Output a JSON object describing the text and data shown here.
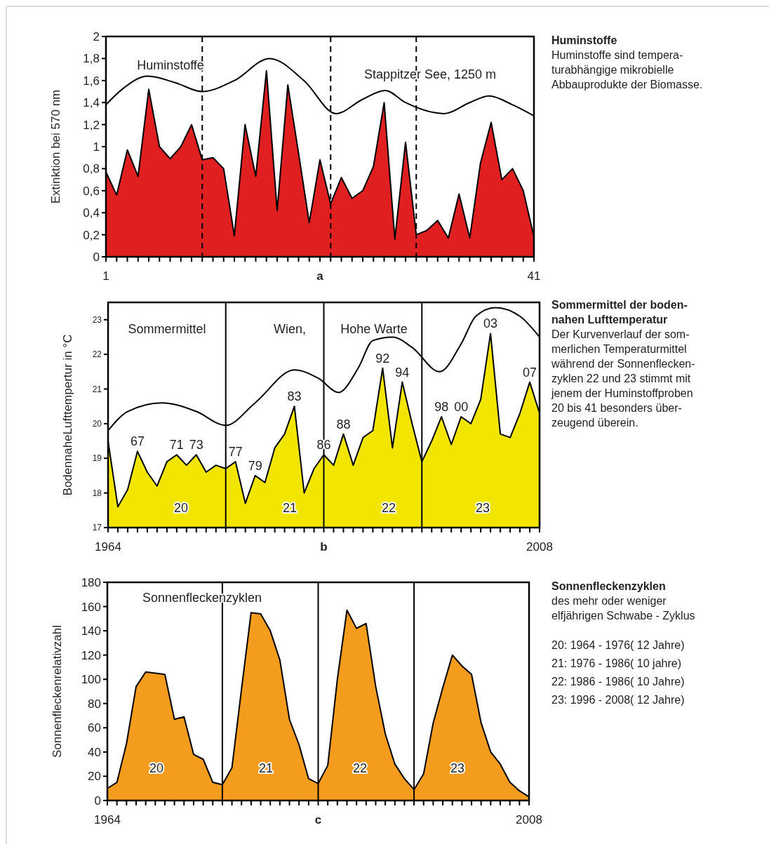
{
  "chart_data": [
    {
      "type": "area",
      "xlabel": "a",
      "ylabel": "Extinktion bei 570 nm",
      "x": [
        1,
        2,
        3,
        4,
        5,
        6,
        7,
        8,
        9,
        10,
        11,
        12,
        13,
        14,
        15,
        16,
        17,
        18,
        19,
        20,
        21,
        22,
        23,
        24,
        25,
        26,
        27,
        28,
        29,
        30,
        31,
        32,
        33,
        34,
        35,
        36,
        37,
        38,
        39,
        40,
        41
      ],
      "xlim": [
        1,
        41
      ],
      "ylim": [
        0,
        2
      ],
      "xticks": [
        1,
        {
          "value": 2,
          "label": null
        },
        {
          "value": 3,
          "label": null
        },
        {
          "value": 4,
          "label": null
        },
        {
          "value": 5,
          "label": null
        },
        {
          "value": 6,
          "label": null
        },
        {
          "value": 7,
          "label": null
        },
        {
          "value": 8,
          "label": null
        },
        {
          "value": 9,
          "label": null
        },
        {
          "value": 10,
          "label": null
        },
        {
          "value": 11,
          "label": null
        },
        {
          "value": 12,
          "label": null
        },
        {
          "value": 13,
          "label": null
        },
        {
          "value": 14,
          "label": null
        },
        {
          "value": 15,
          "label": null
        },
        {
          "value": 16,
          "label": null
        },
        {
          "value": 17,
          "label": null
        },
        {
          "value": 18,
          "label": null
        },
        {
          "value": 19,
          "label": null
        },
        {
          "value": 20,
          "label": null
        },
        {
          "value": 21,
          "label": null
        },
        {
          "value": 22,
          "label": null
        },
        {
          "value": 23,
          "label": null
        },
        {
          "value": 24,
          "label": null
        },
        {
          "value": 25,
          "label": null
        },
        {
          "value": 26,
          "label": null
        },
        {
          "value": 27,
          "label": null
        },
        {
          "value": 28,
          "label": null
        },
        {
          "value": 29,
          "label": null
        },
        {
          "value": 30,
          "label": null
        },
        {
          "value": 31,
          "label": null
        },
        {
          "value": 32,
          "label": null
        },
        {
          "value": 33,
          "label": null
        },
        {
          "value": 34,
          "label": null
        },
        {
          "value": 35,
          "label": null
        },
        {
          "value": 36,
          "label": null
        },
        {
          "value": 37,
          "label": null
        },
        {
          "value": 38,
          "label": null
        },
        {
          "value": 39,
          "label": null
        },
        {
          "value": 40,
          "label": null
        },
        41
      ],
      "yticks": [
        0,
        {
          "value": 0.2,
          "label": "0,2"
        },
        {
          "value": 0.4,
          "label": "0,4"
        },
        {
          "value": 0.6,
          "label": "0,6"
        },
        {
          "value": 0.8,
          "label": "0,8"
        },
        1,
        {
          "value": 1.2,
          "label": "1,2"
        },
        {
          "value": 1.4,
          "label": "1,4"
        },
        {
          "value": 1.6,
          "label": "1,6"
        },
        {
          "value": 1.8,
          "label": "1,8"
        },
        2
      ],
      "series": [
        {
          "type": "area",
          "color": "#e02020",
          "values": [
            0.77,
            0.56,
            0.97,
            0.73,
            1.52,
            1.0,
            0.89,
            1.0,
            1.2,
            0.88,
            0.9,
            0.8,
            0.19,
            1.2,
            0.73,
            1.69,
            0.42,
            1.56,
            0.94,
            0.31,
            0.88,
            0.48,
            0.72,
            0.53,
            0.6,
            0.82,
            1.4,
            0.16,
            1.04,
            0.2,
            0.24,
            0.33,
            0.17,
            0.57,
            0.17,
            0.85,
            1.22,
            0.7,
            0.8,
            0.6,
            0.18
          ]
        },
        {
          "type": "line",
          "color": "#000000",
          "x": [
            1,
            2.5,
            4.9,
            7.5,
            10,
            13,
            16.3,
            19.5,
            22.5,
            25,
            27.1,
            29,
            32.6,
            35,
            36.8,
            39,
            41
          ],
          "values": [
            1.38,
            1.52,
            1.64,
            1.58,
            1.5,
            1.6,
            1.8,
            1.6,
            1.3,
            1.43,
            1.51,
            1.4,
            1.3,
            1.4,
            1.46,
            1.38,
            1.28
          ]
        }
      ],
      "ref_lines": [
        {
          "axis": "x",
          "value": 10,
          "color": "#000000",
          "line_style": "dashed"
        },
        {
          "axis": "x",
          "value": 22,
          "color": "#000000",
          "line_style": "dashed"
        },
        {
          "axis": "x",
          "value": 30,
          "color": "#000000",
          "line_style": "dashed"
        }
      ],
      "annotations": [
        "Huminstoffe",
        "Stappitzer See, 1250 m"
      ]
    },
    {
      "type": "other",
      "title": "Huminstoffe",
      "subtitle": "Huminstoffe sind tempera-\nturabhängige mikrobielle\nAbbauprodukte der Biomasse."
    },
    {
      "type": "area",
      "xlabel": "b",
      "ylabel": "BodennaheLufttempertur in °C",
      "x": [
        1964,
        1965,
        1966,
        1967,
        1968,
        1969,
        1970,
        1971,
        1972,
        1973,
        1974,
        1975,
        1976,
        1977,
        1978,
        1979,
        1980,
        1981,
        1982,
        1983,
        1984,
        1985,
        1986,
        1987,
        1988,
        1989,
        1990,
        1991,
        1992,
        1993,
        1994,
        1995,
        1996,
        1997,
        1998,
        1999,
        2000,
        2001,
        2002,
        2003,
        2004,
        2005,
        2006,
        2007,
        2008
      ],
      "xlim": [
        1964,
        2008
      ],
      "ylim": [
        17,
        23.5
      ],
      "xticks": [
        1964,
        {
          "value": 1965,
          "label": null
        },
        {
          "value": 1966,
          "label": null
        },
        {
          "value": 1967,
          "label": null
        },
        {
          "value": 1968,
          "label": null
        },
        {
          "value": 1969,
          "label": null
        },
        {
          "value": 1970,
          "label": null
        },
        {
          "value": 1971,
          "label": null
        },
        {
          "value": 1972,
          "label": null
        },
        {
          "value": 1973,
          "label": null
        },
        {
          "value": 1974,
          "label": null
        },
        {
          "value": 1975,
          "label": null
        },
        {
          "value": 1976,
          "label": null
        },
        {
          "value": 1977,
          "label": null
        },
        {
          "value": 1978,
          "label": null
        },
        {
          "value": 1979,
          "label": null
        },
        {
          "value": 1980,
          "label": null
        },
        {
          "value": 1981,
          "label": null
        },
        {
          "value": 1982,
          "label": null
        },
        {
          "value": 1983,
          "label": null
        },
        {
          "value": 1984,
          "label": null
        },
        {
          "value": 1985,
          "label": null
        },
        {
          "value": 1986,
          "label": null
        },
        {
          "value": 1987,
          "label": null
        },
        {
          "value": 1988,
          "label": null
        },
        {
          "value": 1989,
          "label": null
        },
        {
          "value": 1990,
          "label": null
        },
        {
          "value": 1991,
          "label": null
        },
        {
          "value": 1992,
          "label": null
        },
        {
          "value": 1993,
          "label": null
        },
        {
          "value": 1994,
          "label": null
        },
        {
          "value": 1995,
          "label": null
        },
        {
          "value": 1996,
          "label": null
        },
        {
          "value": 1997,
          "label": null
        },
        {
          "value": 1998,
          "label": null
        },
        {
          "value": 1999,
          "label": null
        },
        {
          "value": 2000,
          "label": null
        },
        {
          "value": 2001,
          "label": null
        },
        {
          "value": 2002,
          "label": null
        },
        {
          "value": 2003,
          "label": null
        },
        {
          "value": 2004,
          "label": null
        },
        {
          "value": 2005,
          "label": null
        },
        {
          "value": 2006,
          "label": null
        },
        {
          "value": 2007,
          "label": null
        },
        2008
      ],
      "yticks": [
        17,
        18,
        19,
        20,
        21,
        22,
        23
      ],
      "series": [
        {
          "type": "area",
          "color": "#f2e600",
          "values": [
            19.5,
            17.6,
            18.1,
            19.2,
            18.6,
            18.2,
            18.9,
            19.1,
            18.8,
            19.1,
            18.6,
            18.8,
            18.7,
            18.9,
            17.7,
            18.5,
            18.3,
            19.3,
            19.7,
            20.5,
            18.0,
            18.7,
            19.1,
            18.8,
            19.7,
            18.8,
            19.6,
            19.8,
            21.6,
            19.3,
            21.2,
            20.0,
            18.9,
            19.5,
            20.2,
            19.4,
            20.2,
            20.0,
            20.7,
            22.6,
            19.7,
            19.6,
            20.3,
            21.2,
            20.3
          ]
        },
        {
          "type": "line",
          "color": "#000000",
          "x": [
            1964,
            1966,
            1969.5,
            1973,
            1976,
            1979,
            1983,
            1985.5,
            1987.5,
            1989.5,
            1991,
            1993,
            1995,
            1997.8,
            2000,
            2001.5,
            2003.5,
            2006,
            2008
          ],
          "values": [
            19.8,
            20.35,
            20.6,
            20.35,
            19.95,
            20.6,
            21.55,
            21.3,
            20.9,
            21.6,
            22.4,
            22.5,
            22.2,
            21.5,
            22.3,
            23.1,
            23.35,
            23.1,
            22.5
          ]
        }
      ],
      "ref_lines": [
        {
          "axis": "x",
          "value": 1976,
          "color": "#000000",
          "line_style": "solid"
        },
        {
          "axis": "x",
          "value": 1986,
          "color": "#000000",
          "line_style": "solid"
        },
        {
          "axis": "x",
          "value": 1996,
          "color": "#000000",
          "line_style": "solid"
        }
      ],
      "annotations": [
        "Sommermittel",
        "Wien,",
        "Hohe Warte",
        "20",
        "21",
        "22",
        "23",
        {
          "text": "67",
          "x": 1967,
          "y": 19.2
        },
        {
          "text": "71",
          "x": 1971,
          "y": 19.1
        },
        {
          "text": "73",
          "x": 1973,
          "y": 19.1
        },
        {
          "text": "77",
          "x": 1977,
          "y": 18.9
        },
        {
          "text": "79",
          "x": 1979,
          "y": 18.5
        },
        {
          "text": "83",
          "x": 1983,
          "y": 20.5
        },
        {
          "text": "86",
          "x": 1986,
          "y": 19.1
        },
        {
          "text": "88",
          "x": 1988,
          "y": 19.7
        },
        {
          "text": "92",
          "x": 1992,
          "y": 21.6
        },
        {
          "text": "94",
          "x": 1994,
          "y": 21.2
        },
        {
          "text": "98",
          "x": 1998,
          "y": 20.2
        },
        {
          "text": "00",
          "x": 2000,
          "y": 20.2
        },
        {
          "text": "03",
          "x": 2003,
          "y": 22.6
        },
        {
          "text": "07",
          "x": 2007,
          "y": 21.2
        }
      ]
    },
    {
      "type": "other",
      "title": "Sommermittel der boden-\nnahen Lufttemperatur",
      "subtitle": "Der Kurvenverlauf der som-\nmerlichen Temperaturmittel\nwährend der Sonnenflecken-\nzyklen 22 und 23 stimmt mit\njenem der Huminstoffproben\n20 bis 41 besonders über-\nzeugend überein."
    },
    {
      "type": "area",
      "xlabel": "c",
      "ylabel": "Sonnenfleckenrelativzahl",
      "x": [
        1964,
        1965,
        1966,
        1967,
        1968,
        1969,
        1970,
        1971,
        1972,
        1973,
        1974,
        1975,
        1976,
        1977,
        1978,
        1979,
        1980,
        1981,
        1982,
        1983,
        1984,
        1985,
        1986,
        1987,
        1988,
        1989,
        1990,
        1991,
        1992,
        1993,
        1994,
        1995,
        1996,
        1997,
        1998,
        1999,
        2000,
        2001,
        2002,
        2003,
        2004,
        2005,
        2006,
        2007,
        2008
      ],
      "xlim": [
        1964,
        2008
      ],
      "ylim": [
        0,
        180
      ],
      "xticks": [
        1964,
        {
          "value": 1965,
          "label": null
        },
        {
          "value": 1966,
          "label": null
        },
        {
          "value": 1967,
          "label": null
        },
        {
          "value": 1968,
          "label": null
        },
        {
          "value": 1969,
          "label": null
        },
        {
          "value": 1970,
          "label": null
        },
        {
          "value": 1971,
          "label": null
        },
        {
          "value": 1972,
          "label": null
        },
        {
          "value": 1973,
          "label": null
        },
        {
          "value": 1974,
          "label": null
        },
        {
          "value": 1975,
          "label": null
        },
        {
          "value": 1976,
          "label": null
        },
        {
          "value": 1977,
          "label": null
        },
        {
          "value": 1978,
          "label": null
        },
        {
          "value": 1979,
          "label": null
        },
        {
          "value": 1980,
          "label": null
        },
        {
          "value": 1981,
          "label": null
        },
        {
          "value": 1982,
          "label": null
        },
        {
          "value": 1983,
          "label": null
        },
        {
          "value": 1984,
          "label": null
        },
        {
          "value": 1985,
          "label": null
        },
        {
          "value": 1986,
          "label": null
        },
        {
          "value": 1987,
          "label": null
        },
        {
          "value": 1988,
          "label": null
        },
        {
          "value": 1989,
          "label": null
        },
        {
          "value": 1990,
          "label": null
        },
        {
          "value": 1991,
          "label": null
        },
        {
          "value": 1992,
          "label": null
        },
        {
          "value": 1993,
          "label": null
        },
        {
          "value": 1994,
          "label": null
        },
        {
          "value": 1995,
          "label": null
        },
        {
          "value": 1996,
          "label": null
        },
        {
          "value": 1997,
          "label": null
        },
        {
          "value": 1998,
          "label": null
        },
        {
          "value": 1999,
          "label": null
        },
        {
          "value": 2000,
          "label": null
        },
        {
          "value": 2001,
          "label": null
        },
        {
          "value": 2002,
          "label": null
        },
        {
          "value": 2003,
          "label": null
        },
        {
          "value": 2004,
          "label": null
        },
        {
          "value": 2005,
          "label": null
        },
        {
          "value": 2006,
          "label": null
        },
        {
          "value": 2007,
          "label": null
        },
        2008
      ],
      "yticks": [
        0,
        20,
        40,
        60,
        80,
        100,
        120,
        140,
        160,
        180
      ],
      "series": [
        {
          "type": "area",
          "color": "#f39c1e",
          "values": [
            10,
            15,
            47,
            94,
            106,
            105,
            104,
            67,
            69,
            38,
            34,
            15,
            13,
            27,
            92,
            155,
            154,
            140,
            116,
            67,
            46,
            18,
            14,
            29,
            100,
            157,
            142,
            146,
            94,
            55,
            30,
            18,
            9,
            22,
            64,
            93,
            120,
            111,
            104,
            64,
            40,
            30,
            15,
            8,
            3
          ]
        }
      ],
      "ref_lines": [
        {
          "axis": "x",
          "value": 1976,
          "color": "#000000",
          "line_style": "solid"
        },
        {
          "axis": "x",
          "value": 1986,
          "color": "#000000",
          "line_style": "solid"
        },
        {
          "axis": "x",
          "value": 1996,
          "color": "#000000",
          "line_style": "solid"
        }
      ],
      "annotations": [
        "Sonnenfleckenzyklen",
        "20",
        "21",
        "22",
        "23"
      ]
    },
    {
      "type": "other",
      "title": "Sonnenfleckenzyklen",
      "subtitle": "des mehr oder weniger\nelfjährigen Schwabe - Zyklus",
      "annotations": [
        "20: 1964 - 1976( 12 Jahre)",
        "21: 1976 - 1986( 10 jahre)",
        "22: 1986 - 1986( 10 Jahre)",
        "23: 1996 - 2008( 12 Jahre)"
      ]
    }
  ]
}
